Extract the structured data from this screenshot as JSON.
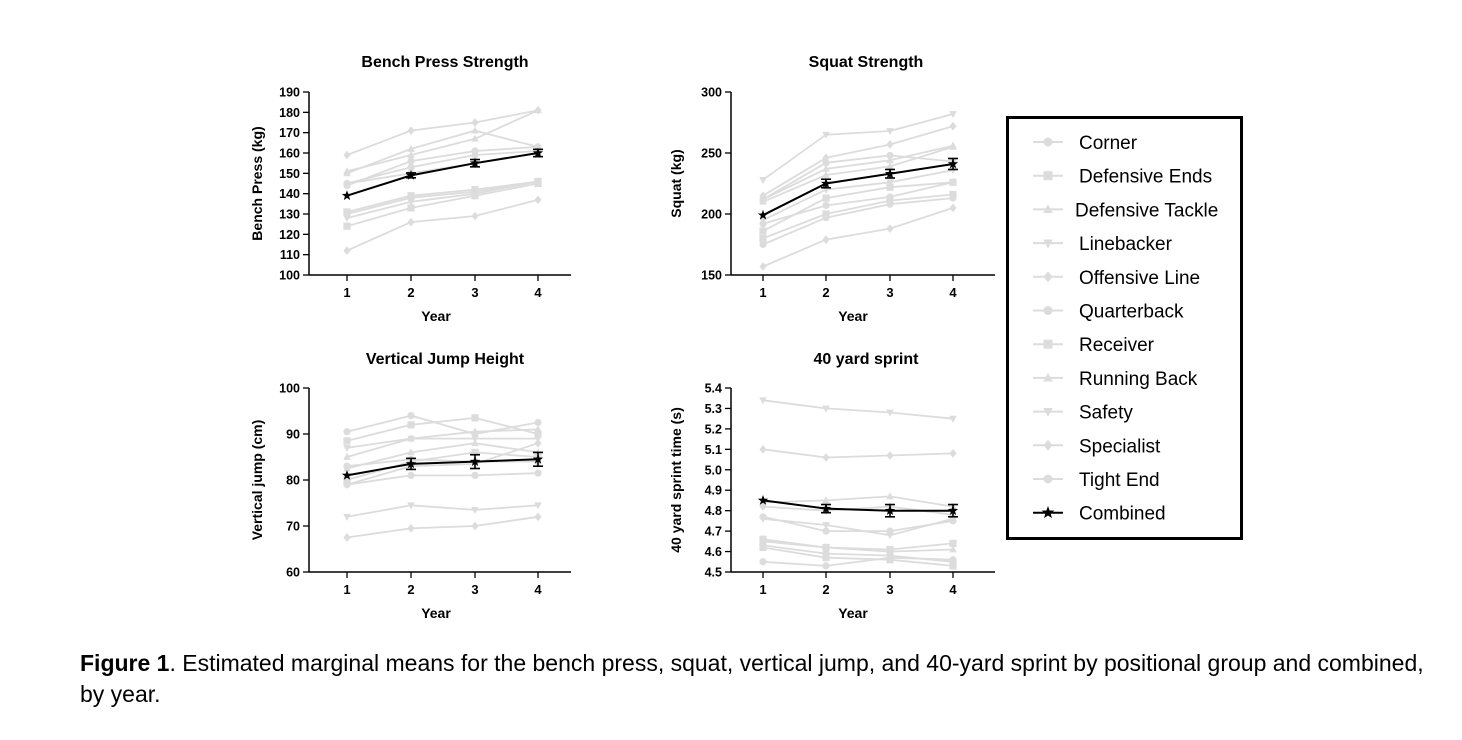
{
  "caption": {
    "label": "Figure 1",
    "text": ". Estimated marginal means for the bench press, squat, vertical jump, and 40-yard sprint by positional group and combined, by year."
  },
  "colors": {
    "group": "#dcdcdc",
    "combined": "#000000"
  },
  "legend": {
    "placement": "right",
    "entries": [
      {
        "label": "Corner",
        "marker": "circle"
      },
      {
        "label": "Defensive Ends",
        "marker": "square"
      },
      {
        "label": "Defensive Tackle",
        "marker": "triangle-up"
      },
      {
        "label": "Linebacker",
        "marker": "triangle-down"
      },
      {
        "label": "Offensive Line",
        "marker": "diamond"
      },
      {
        "label": "Quarterback",
        "marker": "circle"
      },
      {
        "label": "Receiver",
        "marker": "square"
      },
      {
        "label": "Running Back",
        "marker": "triangle-up"
      },
      {
        "label": "Safety",
        "marker": "triangle-down"
      },
      {
        "label": "Specialist",
        "marker": "diamond"
      },
      {
        "label": "Tight End",
        "marker": "circle"
      },
      {
        "label": "Combined",
        "marker": "star"
      }
    ]
  },
  "chart_data": [
    {
      "type": "line",
      "title": "Bench Press Strength",
      "xlabel": "Year",
      "ylabel": "Bench Press (kg)",
      "x": [
        1,
        2,
        3,
        4
      ],
      "xticks": [
        "1",
        "2",
        "3",
        "4"
      ],
      "ylim": [
        100,
        190
      ],
      "yticks": [
        "100",
        "110",
        "120",
        "130",
        "140",
        "150",
        "160",
        "170",
        "180",
        "190"
      ],
      "series": [
        {
          "values": [
            145,
            150,
            155,
            160
          ]
        },
        {
          "values": [
            131,
            139,
            142,
            146
          ]
        },
        {
          "values": [
            151,
            159,
            167,
            181
          ]
        },
        {
          "values": [
            130,
            138,
            141,
            146
          ]
        },
        {
          "values": [
            159,
            171,
            175,
            181
          ]
        },
        {
          "values": [
            144,
            156,
            161,
            163
          ]
        },
        {
          "values": [
            124,
            133,
            139,
            145
          ]
        },
        {
          "values": [
            150,
            162,
            171,
            163
          ]
        },
        {
          "values": [
            128,
            136,
            140,
            146
          ]
        },
        {
          "values": [
            112,
            126,
            129,
            137
          ]
        },
        {
          "values": [
            145,
            153,
            159,
            161
          ]
        },
        {
          "values": [
            139,
            149,
            155,
            160
          ],
          "combined": true,
          "err": [
            0.8,
            1.2,
            1.8,
            1.8
          ]
        }
      ]
    },
    {
      "type": "line",
      "title": "Squat Strength",
      "xlabel": "Year",
      "ylabel": "Squat (kg)",
      "x": [
        1,
        2,
        3,
        4
      ],
      "xticks": [
        "1",
        "2",
        "3",
        "4"
      ],
      "ylim": [
        150,
        300
      ],
      "yticks": [
        "150",
        "200",
        "250",
        "300"
      ],
      "series": [
        {
          "values": [
            192,
            207,
            214,
            226
          ]
        },
        {
          "values": [
            180,
            200,
            211,
            216
          ]
        },
        {
          "values": [
            212,
            237,
            244,
            256
          ]
        },
        {
          "values": [
            228,
            265,
            268,
            282
          ]
        },
        {
          "values": [
            215,
            246,
            257,
            272
          ]
        },
        {
          "values": [
            175,
            197,
            208,
            213
          ]
        },
        {
          "values": [
            186,
            213,
            222,
            226
          ]
        },
        {
          "values": [
            210,
            232,
            239,
            255
          ]
        },
        {
          "values": [
            195,
            220,
            226,
            236
          ]
        },
        {
          "values": [
            157,
            179,
            188,
            205
          ]
        },
        {
          "values": [
            212,
            242,
            248,
            243
          ]
        },
        {
          "values": [
            199,
            225,
            233,
            241
          ],
          "combined": true,
          "err": [
            1.5,
            3.5,
            3.5,
            4.5
          ]
        }
      ]
    },
    {
      "type": "line",
      "title": "Vertical Jump Height",
      "xlabel": "Year",
      "ylabel": "Vertical jump (cm)",
      "x": [
        1,
        2,
        3,
        4
      ],
      "xticks": [
        "1",
        "2",
        "3",
        "4"
      ],
      "ylim": [
        60,
        100
      ],
      "yticks": [
        "60",
        "70",
        "80",
        "90",
        "100"
      ],
      "series": [
        {
          "values": [
            90.5,
            94,
            90,
            92.5
          ]
        },
        {
          "values": [
            88.5,
            92,
            93.5,
            90
          ]
        },
        {
          "values": [
            85,
            89,
            90.5,
            91
          ]
        },
        {
          "values": [
            87,
            89,
            89,
            89
          ]
        },
        {
          "values": [
            79,
            83,
            83.5,
            88
          ]
        },
        {
          "values": [
            83,
            84.5,
            84,
            84
          ]
        },
        {
          "values": [
            80,
            84,
            86,
            85
          ]
        },
        {
          "values": [
            82.5,
            86,
            88,
            86
          ]
        },
        {
          "values": [
            72,
            74.5,
            73.5,
            74.5
          ]
        },
        {
          "values": [
            67.5,
            69.5,
            70,
            72
          ]
        },
        {
          "values": [
            79,
            81,
            81,
            81.5
          ]
        },
        {
          "values": [
            81,
            83.5,
            84,
            84.5
          ],
          "combined": true,
          "err": [
            0.5,
            1.2,
            1.5,
            1.5
          ]
        }
      ]
    },
    {
      "type": "line",
      "title": "40 yard sprint",
      "xlabel": "Year",
      "ylabel": "40 yard sprint time (s)",
      "x": [
        1,
        2,
        3,
        4
      ],
      "xticks": [
        "1",
        "2",
        "3",
        "4"
      ],
      "ylim": [
        4.5,
        5.4
      ],
      "yticks": [
        "4.5",
        "4.6",
        "4.7",
        "4.8",
        "4.9",
        "5.0",
        "5.1",
        "5.2",
        "5.3",
        "5.4"
      ],
      "series": [
        {
          "values": [
            4.63,
            4.59,
            4.58,
            4.55
          ]
        },
        {
          "values": [
            4.66,
            4.62,
            4.61,
            4.64
          ]
        },
        {
          "values": [
            4.84,
            4.85,
            4.87,
            4.82
          ]
        },
        {
          "values": [
            5.34,
            5.3,
            5.28,
            5.25
          ]
        },
        {
          "values": [
            5.1,
            5.06,
            5.07,
            5.08
          ]
        },
        {
          "values": [
            4.77,
            4.7,
            4.7,
            4.75
          ]
        },
        {
          "values": [
            4.62,
            4.57,
            4.56,
            4.53
          ]
        },
        {
          "values": [
            4.65,
            4.62,
            4.6,
            4.61
          ]
        },
        {
          "values": [
            4.76,
            4.73,
            4.68,
            4.76
          ]
        },
        {
          "values": [
            4.82,
            4.8,
            4.82,
            4.78
          ]
        },
        {
          "values": [
            4.55,
            4.53,
            4.57,
            4.56
          ]
        },
        {
          "values": [
            4.85,
            4.81,
            4.8,
            4.8
          ],
          "combined": true,
          "err": [
            0.02,
            0.02,
            0.03,
            0.03
          ]
        }
      ]
    }
  ]
}
